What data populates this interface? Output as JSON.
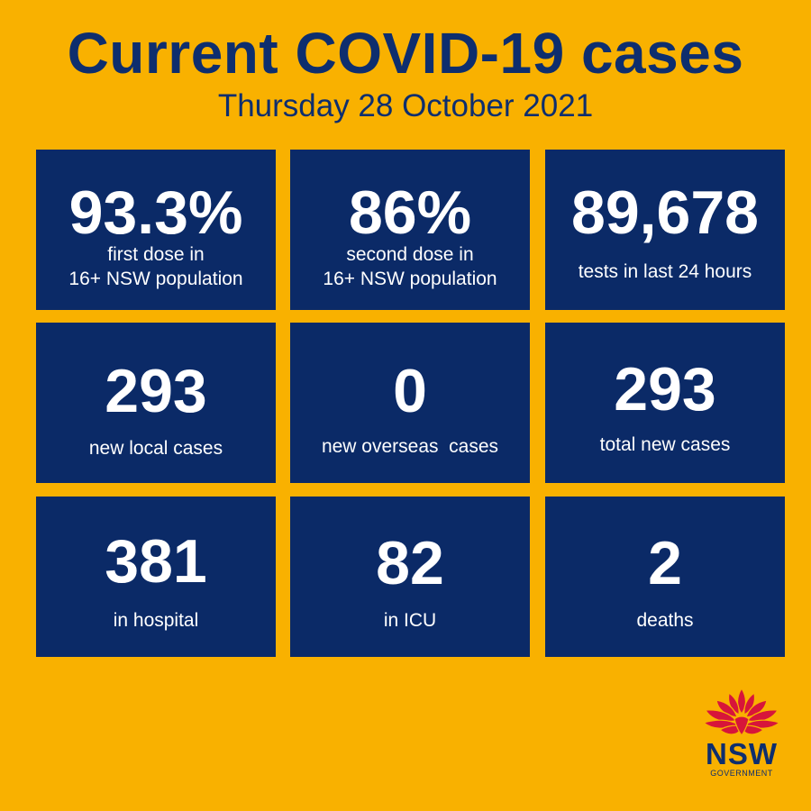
{
  "header": {
    "title": "Current COVID-19 cases",
    "date": "Thursday 28 October 2021"
  },
  "stats": [
    {
      "value": "93.3%",
      "label_line1": "first dose in",
      "label_line2": "16+ NSW population"
    },
    {
      "value": "86%",
      "label_line1": "second dose in",
      "label_line2": "16+ NSW population"
    },
    {
      "value": "89,678",
      "label": "tests in last 24 hours"
    },
    {
      "value": "293",
      "label": "new local cases"
    },
    {
      "value": "0",
      "label": "new overseas  cases"
    },
    {
      "value": "293",
      "label": "total new cases"
    },
    {
      "value": "381",
      "label": "in hospital"
    },
    {
      "value": "82",
      "label": "in ICU"
    },
    {
      "value": "2",
      "label": "deaths"
    }
  ],
  "logo": {
    "name": "NSW",
    "sub": "GOVERNMENT",
    "icon": "waratah-flower-icon"
  },
  "colors": {
    "background": "#f9b100",
    "tile": "#0b2a67",
    "title": "#0e2e6e",
    "logo_red": "#d7153a"
  }
}
